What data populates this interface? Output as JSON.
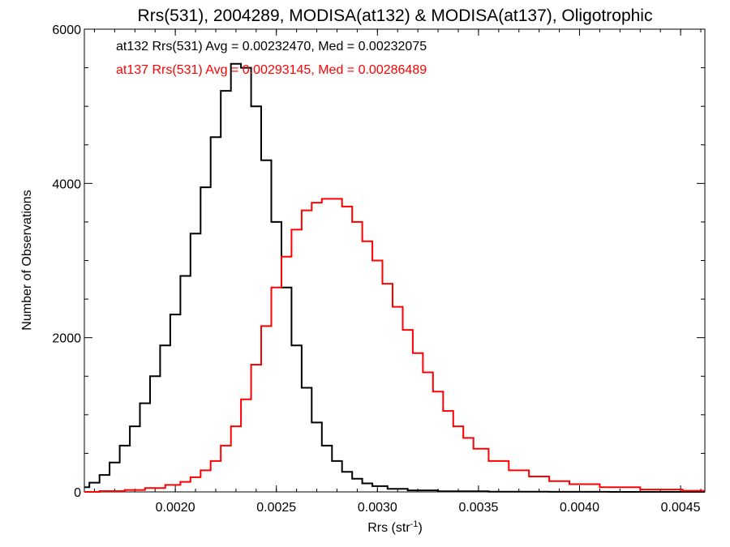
{
  "chart_data": {
    "type": "line",
    "title": "Rrs(531), 2004289, MODISA(at132) & MODISA(at137), Oligotrophic",
    "xlabel_main": "Rrs (str",
    "xlabel_sup": "-1",
    "xlabel_end": ")",
    "ylabel": "Number of Observations",
    "xlim": [
      0.00155,
      0.00462
    ],
    "ylim": [
      0,
      6000
    ],
    "xticks": [
      {
        "value": 0.002,
        "label": "0.0020"
      },
      {
        "value": 0.0025,
        "label": "0.0025"
      },
      {
        "value": 0.003,
        "label": "0.0030"
      },
      {
        "value": 0.0035,
        "label": "0.0035"
      },
      {
        "value": 0.004,
        "label": "0.0040"
      },
      {
        "value": 0.0045,
        "label": "0.0045"
      }
    ],
    "yticks": [
      {
        "value": 0,
        "label": "0"
      },
      {
        "value": 2000,
        "label": "2000"
      },
      {
        "value": 4000,
        "label": "4000"
      },
      {
        "value": 6000,
        "label": "6000"
      }
    ],
    "grid": false,
    "series": [
      {
        "id": "at132",
        "color": "#000000",
        "annotation": "at132 Rrs(531) Avg = 0.00232470, Med = 0.00232075",
        "points": [
          [
            0.00155,
            60
          ],
          [
            0.0016,
            120
          ],
          [
            0.00165,
            220
          ],
          [
            0.0017,
            380
          ],
          [
            0.00175,
            600
          ],
          [
            0.0018,
            850
          ],
          [
            0.00185,
            1150
          ],
          [
            0.0019,
            1500
          ],
          [
            0.00195,
            1900
          ],
          [
            0.002,
            2300
          ],
          [
            0.00205,
            2800
          ],
          [
            0.0021,
            3350
          ],
          [
            0.00215,
            3950
          ],
          [
            0.0022,
            4600
          ],
          [
            0.00225,
            5200
          ],
          [
            0.0023,
            5550
          ],
          [
            0.00235,
            5500
          ],
          [
            0.0024,
            5000
          ],
          [
            0.00245,
            4300
          ],
          [
            0.0025,
            3500
          ],
          [
            0.00255,
            2650
          ],
          [
            0.0026,
            1900
          ],
          [
            0.00265,
            1350
          ],
          [
            0.0027,
            900
          ],
          [
            0.00275,
            600
          ],
          [
            0.0028,
            400
          ],
          [
            0.00285,
            260
          ],
          [
            0.0029,
            170
          ],
          [
            0.00295,
            110
          ],
          [
            0.003,
            75
          ],
          [
            0.0031,
            40
          ],
          [
            0.0032,
            20
          ],
          [
            0.0034,
            8
          ],
          [
            0.0037,
            3
          ],
          [
            0.004,
            1
          ],
          [
            0.0043,
            0
          ],
          [
            0.00462,
            0
          ]
        ]
      },
      {
        "id": "at137",
        "color": "#ff0000",
        "annotation": "at137 Rrs(531) Avg = 0.00293145, Med = 0.00286489",
        "points": [
          [
            0.00155,
            0
          ],
          [
            0.0017,
            10
          ],
          [
            0.0018,
            25
          ],
          [
            0.0019,
            50
          ],
          [
            0.002,
            90
          ],
          [
            0.00205,
            130
          ],
          [
            0.0021,
            190
          ],
          [
            0.00215,
            280
          ],
          [
            0.0022,
            400
          ],
          [
            0.00225,
            600
          ],
          [
            0.0023,
            850
          ],
          [
            0.00235,
            1200
          ],
          [
            0.0024,
            1650
          ],
          [
            0.00245,
            2150
          ],
          [
            0.0025,
            2650
          ],
          [
            0.00255,
            3050
          ],
          [
            0.0026,
            3400
          ],
          [
            0.00265,
            3650
          ],
          [
            0.0027,
            3750
          ],
          [
            0.00275,
            3800
          ],
          [
            0.0028,
            3800
          ],
          [
            0.00285,
            3700
          ],
          [
            0.0029,
            3500
          ],
          [
            0.00295,
            3250
          ],
          [
            0.003,
            3000
          ],
          [
            0.00305,
            2700
          ],
          [
            0.0031,
            2400
          ],
          [
            0.00315,
            2100
          ],
          [
            0.0032,
            1800
          ],
          [
            0.00325,
            1550
          ],
          [
            0.0033,
            1300
          ],
          [
            0.00335,
            1050
          ],
          [
            0.0034,
            850
          ],
          [
            0.00345,
            700
          ],
          [
            0.0035,
            560
          ],
          [
            0.0036,
            400
          ],
          [
            0.0037,
            280
          ],
          [
            0.0038,
            200
          ],
          [
            0.0039,
            140
          ],
          [
            0.004,
            100
          ],
          [
            0.0042,
            60
          ],
          [
            0.0044,
            30
          ],
          [
            0.00462,
            15
          ]
        ]
      }
    ]
  }
}
